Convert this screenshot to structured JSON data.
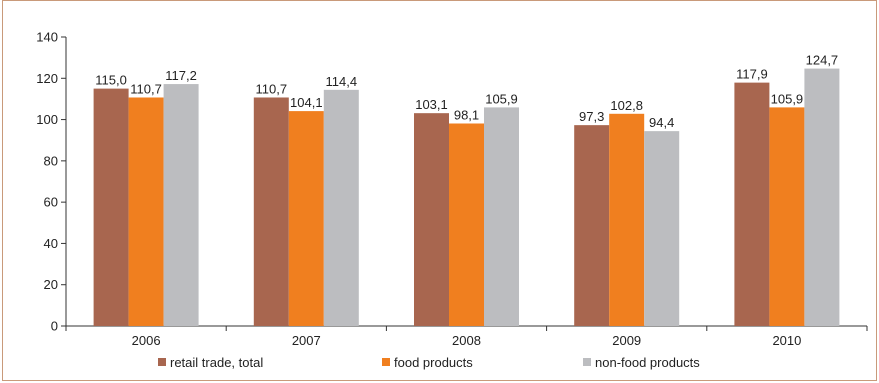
{
  "chart_data": {
    "type": "bar",
    "categories": [
      "2006",
      "2007",
      "2008",
      "2009",
      "2010"
    ],
    "series": [
      {
        "name": "retail trade, total",
        "color": "#a8664f",
        "values": [
          115.0,
          110.7,
          103.1,
          97.3,
          117.9
        ],
        "labels": [
          "115,0",
          "110,7",
          "103,1",
          "97,3",
          "117,9"
        ]
      },
      {
        "name": "food products",
        "color": "#f07f1f",
        "values": [
          110.7,
          104.1,
          98.1,
          102.8,
          105.9
        ],
        "labels": [
          "110,7",
          "104,1",
          "98,1",
          "102,8",
          "105,9"
        ]
      },
      {
        "name": "non-food products",
        "color": "#bcbdc0",
        "values": [
          117.2,
          114.4,
          105.9,
          94.4,
          124.7
        ],
        "labels": [
          "117,2",
          "114,4",
          "105,9",
          "94,4",
          "124,7"
        ]
      }
    ],
    "ylim": [
      0,
      140
    ],
    "yticks": [
      "0",
      "20",
      "40",
      "60",
      "80",
      "100",
      "120",
      "140"
    ],
    "grid": false,
    "legend_position": "bottom"
  }
}
